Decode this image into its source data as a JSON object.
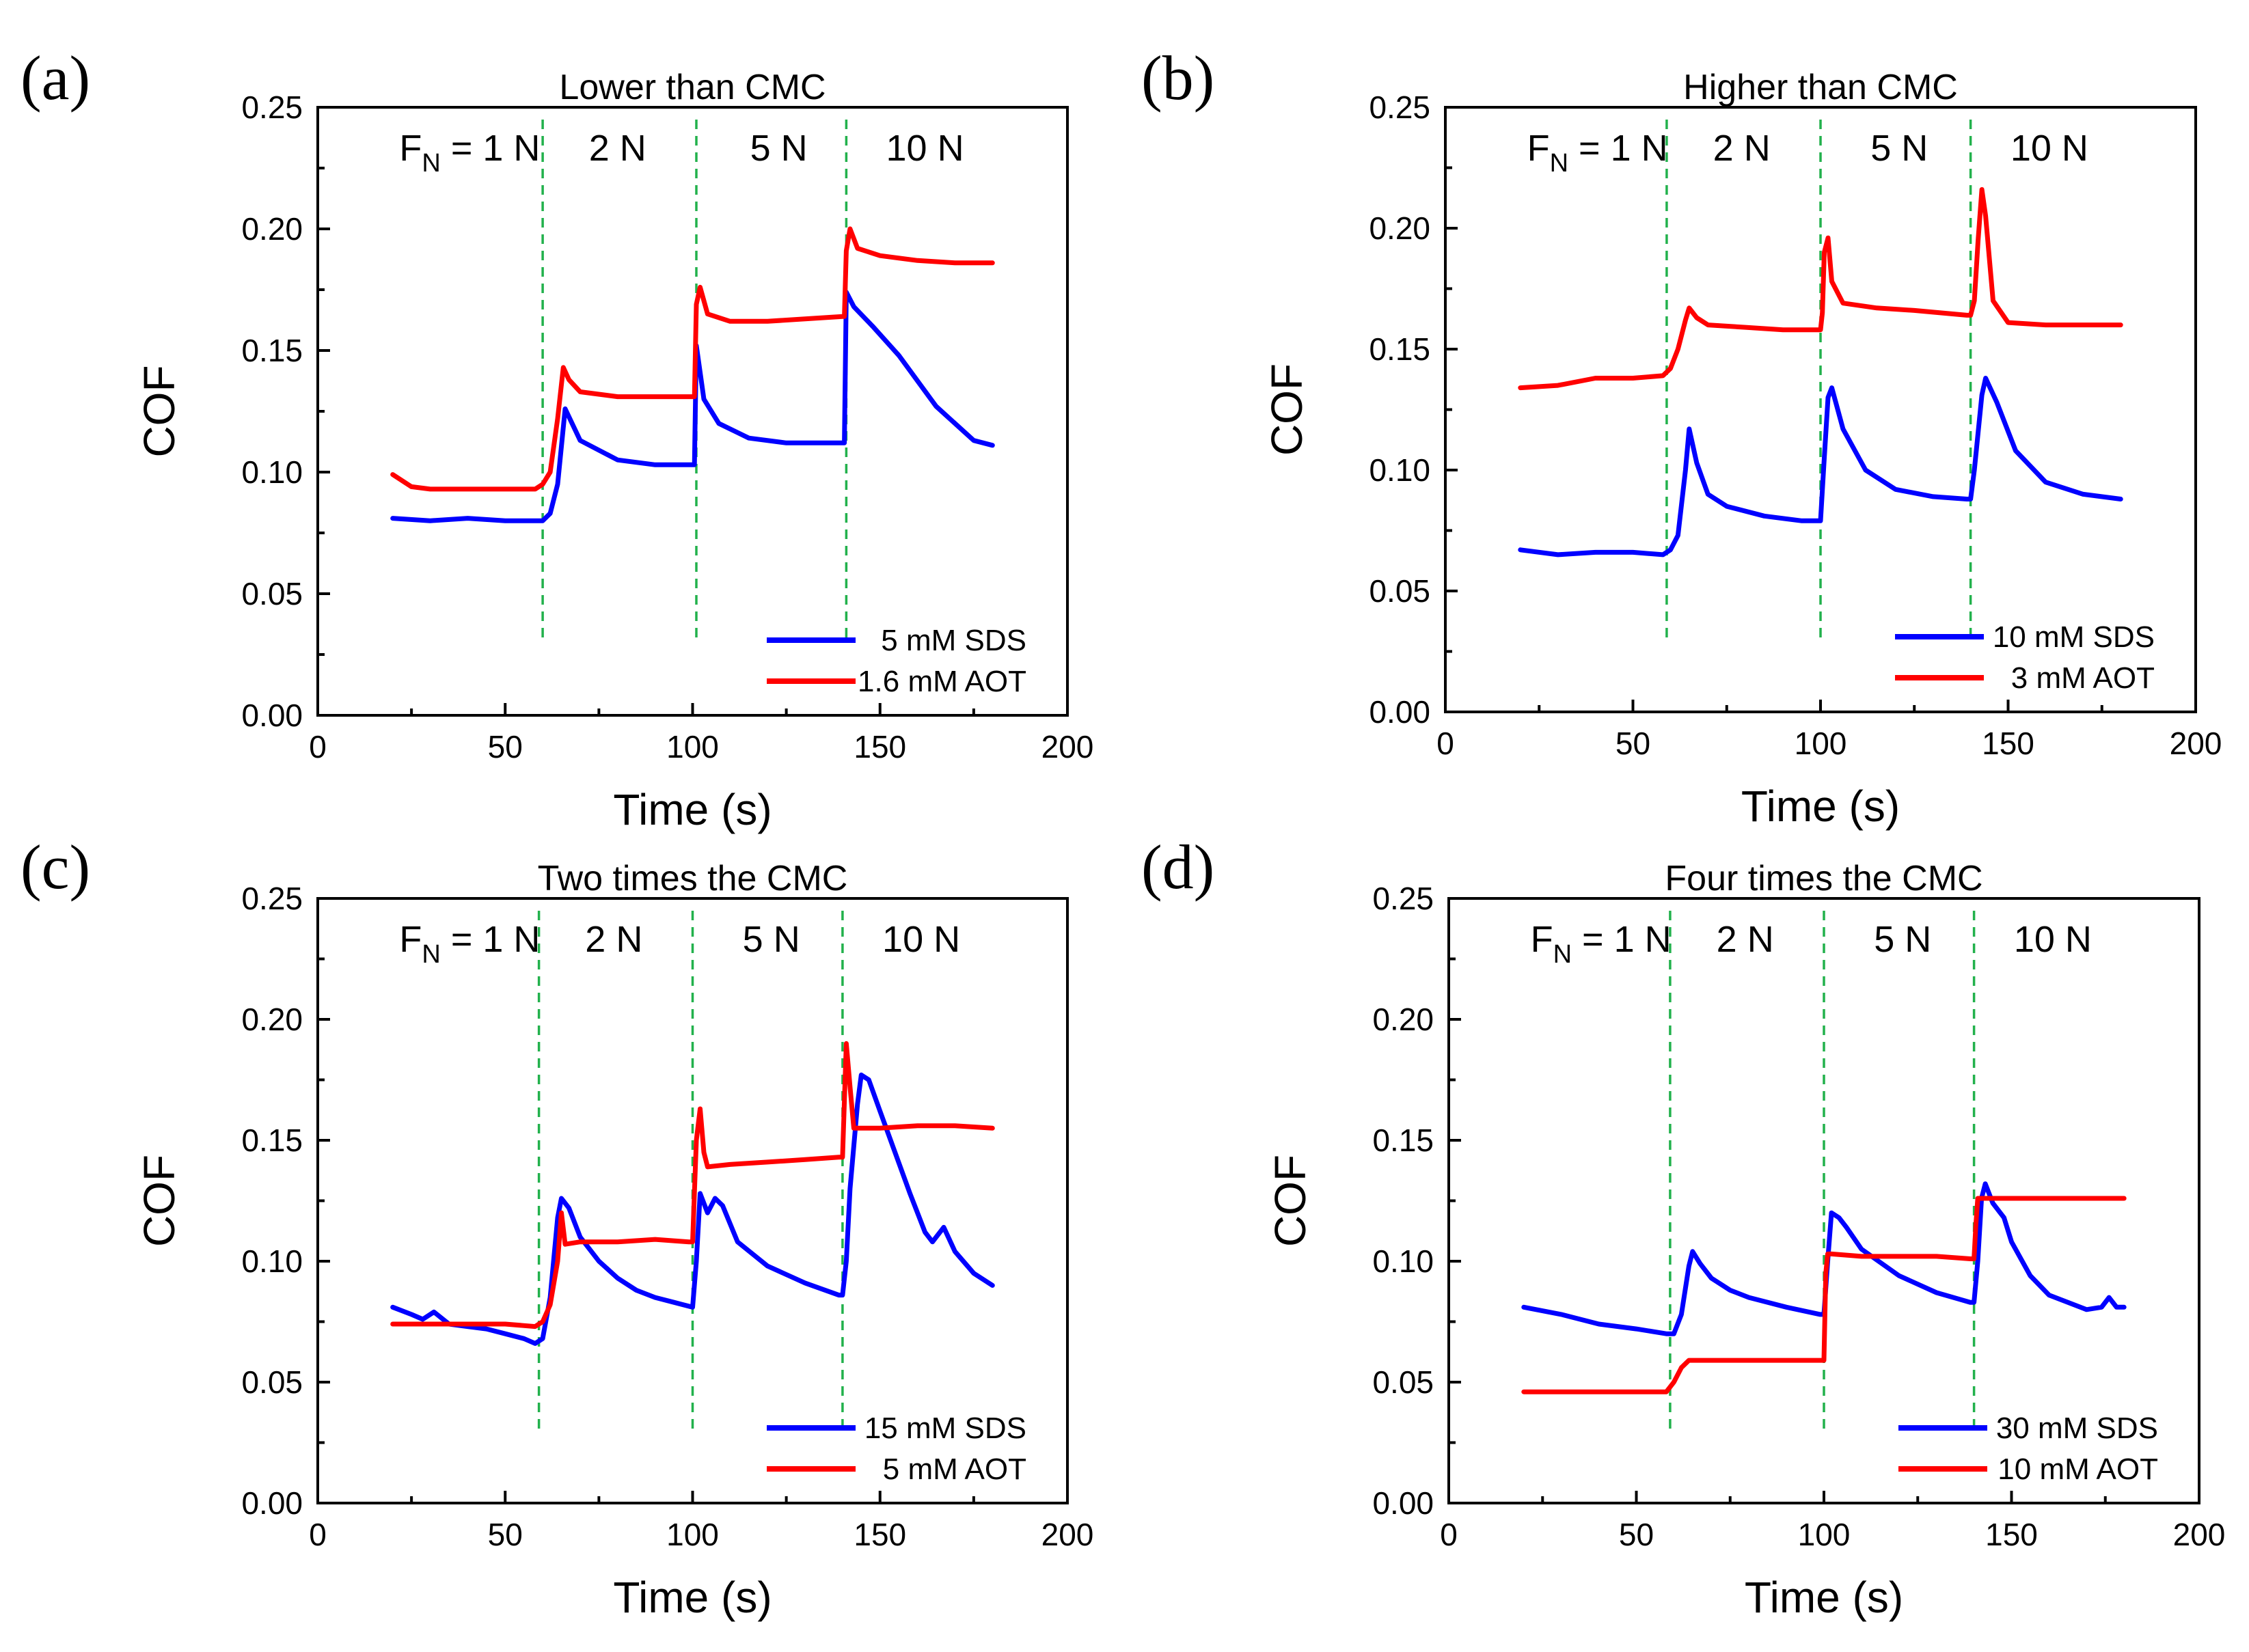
{
  "chart_data": [
    {
      "type": "line",
      "panel_label": "(a)",
      "title": "Lower than CMC",
      "xlabel": "Time (s)",
      "ylabel": "COF",
      "xlim": [
        0,
        200
      ],
      "ylim": [
        0,
        0.25
      ],
      "xticks": [
        "0",
        "50",
        "100",
        "150",
        "200"
      ],
      "yticks": [
        "0.00",
        "0.05",
        "0.10",
        "0.15",
        "0.20",
        "0.25"
      ],
      "vlines": [
        60,
        101,
        141
      ],
      "load_labels": [
        "F",
        "N",
        " = 1 N",
        "2 N",
        "5 N",
        "10 N"
      ],
      "load_positions": [
        40,
        80,
        123,
        162
      ],
      "legend_position": "lower-right",
      "series": [
        {
          "name": "5 mM SDS",
          "color": "#0000ff",
          "x": [
            20,
            30,
            40,
            50,
            58,
            60,
            62,
            64,
            66,
            70,
            80,
            90,
            100,
            100.5,
            101,
            103,
            107,
            115,
            125,
            140,
            140.5,
            141,
            143,
            148,
            155,
            165,
            175,
            180
          ],
          "y": [
            0.081,
            0.08,
            0.081,
            0.08,
            0.08,
            0.08,
            0.083,
            0.095,
            0.126,
            0.113,
            0.105,
            0.103,
            0.103,
            0.103,
            0.152,
            0.13,
            0.12,
            0.114,
            0.112,
            0.112,
            0.112,
            0.174,
            0.168,
            0.16,
            0.148,
            0.127,
            0.113,
            0.111
          ]
        },
        {
          "name": "1.6 mM AOT",
          "color": "#ff0000",
          "x": [
            20,
            25,
            30,
            40,
            50,
            58,
            60,
            62,
            64,
            65.5,
            67,
            70,
            80,
            90,
            100,
            100.5,
            101,
            102,
            104,
            110,
            120,
            130,
            140,
            140.5,
            141,
            142,
            144,
            150,
            160,
            170,
            180
          ],
          "y": [
            0.099,
            0.094,
            0.093,
            0.093,
            0.093,
            0.093,
            0.095,
            0.1,
            0.122,
            0.143,
            0.138,
            0.133,
            0.131,
            0.131,
            0.131,
            0.131,
            0.169,
            0.176,
            0.165,
            0.162,
            0.162,
            0.163,
            0.164,
            0.164,
            0.191,
            0.2,
            0.192,
            0.189,
            0.187,
            0.186,
            0.186
          ]
        }
      ]
    },
    {
      "type": "line",
      "panel_label": "(b)",
      "title": "Higher than CMC",
      "xlabel": "Time (s)",
      "ylabel": "COF",
      "xlim": [
        0,
        200
      ],
      "ylim": [
        0,
        0.25
      ],
      "xticks": [
        "0",
        "50",
        "100",
        "150",
        "200"
      ],
      "yticks": [
        "0.00",
        "0.05",
        "0.10",
        "0.15",
        "0.20",
        "0.25"
      ],
      "vlines": [
        59,
        100,
        140
      ],
      "load_labels": [
        "F",
        "N",
        " = 1 N",
        "2 N",
        "5 N",
        "10 N"
      ],
      "load_positions": [
        40,
        79,
        121,
        161
      ],
      "legend_position": "lower-right",
      "series": [
        {
          "name": "10 mM SDS",
          "color": "#0000ff",
          "x": [
            20,
            30,
            40,
            50,
            58,
            60,
            62,
            64,
            65,
            67,
            70,
            75,
            85,
            95,
            99,
            100,
            101,
            102,
            103,
            106,
            112,
            120,
            130,
            139,
            140,
            141,
            143,
            144,
            147,
            152,
            160,
            170,
            180
          ],
          "y": [
            0.067,
            0.065,
            0.066,
            0.066,
            0.065,
            0.067,
            0.073,
            0.1,
            0.117,
            0.103,
            0.09,
            0.085,
            0.081,
            0.079,
            0.079,
            0.079,
            0.105,
            0.13,
            0.134,
            0.117,
            0.1,
            0.092,
            0.089,
            0.088,
            0.088,
            0.1,
            0.131,
            0.138,
            0.128,
            0.108,
            0.095,
            0.09,
            0.088
          ]
        },
        {
          "name": "3 mM AOT",
          "color": "#ff0000",
          "x": [
            20,
            30,
            40,
            50,
            58,
            60,
            62,
            64,
            65,
            67,
            70,
            80,
            90,
            99,
            100,
            100.5,
            101,
            102,
            103,
            106,
            115,
            125,
            139,
            140,
            141,
            142,
            143,
            144,
            146,
            150,
            160,
            170,
            180
          ],
          "y": [
            0.134,
            0.135,
            0.138,
            0.138,
            0.139,
            0.142,
            0.15,
            0.162,
            0.167,
            0.163,
            0.16,
            0.159,
            0.158,
            0.158,
            0.158,
            0.165,
            0.19,
            0.196,
            0.178,
            0.169,
            0.167,
            0.166,
            0.164,
            0.164,
            0.17,
            0.195,
            0.216,
            0.205,
            0.17,
            0.161,
            0.16,
            0.16,
            0.16
          ]
        }
      ]
    },
    {
      "type": "line",
      "panel_label": "(c)",
      "title": "Two times the CMC",
      "xlabel": "Time (s)",
      "ylabel": "COF",
      "xlim": [
        0,
        200
      ],
      "ylim": [
        0,
        0.25
      ],
      "xticks": [
        "0",
        "50",
        "100",
        "150",
        "200"
      ],
      "yticks": [
        "0.00",
        "0.05",
        "0.10",
        "0.15",
        "0.20",
        "0.25"
      ],
      "vlines": [
        59,
        100,
        140
      ],
      "load_labels": [
        "F",
        "N",
        " = 1 N",
        "2 N",
        "5 N",
        "10 N"
      ],
      "load_positions": [
        40,
        79,
        121,
        161
      ],
      "legend_position": "lower-right",
      "series": [
        {
          "name": "15 mM SDS",
          "color": "#0000ff",
          "x": [
            20,
            25,
            28,
            31,
            35,
            40,
            45,
            50,
            55,
            58,
            60,
            62,
            64,
            65,
            67,
            70,
            75,
            80,
            85,
            90,
            95,
            100,
            101,
            102,
            104,
            106,
            108,
            112,
            120,
            130,
            139,
            140,
            141,
            142,
            144,
            145,
            147,
            150,
            154,
            158,
            162,
            164,
            166,
            167,
            170,
            175,
            180
          ],
          "y": [
            0.081,
            0.078,
            0.076,
            0.079,
            0.074,
            0.073,
            0.072,
            0.07,
            0.068,
            0.066,
            0.068,
            0.085,
            0.118,
            0.126,
            0.122,
            0.11,
            0.1,
            0.093,
            0.088,
            0.085,
            0.083,
            0.081,
            0.1,
            0.128,
            0.12,
            0.126,
            0.123,
            0.108,
            0.098,
            0.091,
            0.086,
            0.086,
            0.1,
            0.13,
            0.165,
            0.177,
            0.175,
            0.162,
            0.145,
            0.128,
            0.112,
            0.108,
            0.112,
            0.114,
            0.104,
            0.095,
            0.09
          ]
        },
        {
          "name": "5 mM AOT",
          "color": "#ff0000",
          "x": [
            20,
            30,
            40,
            50,
            58,
            60,
            62,
            64,
            65,
            66,
            70,
            80,
            90,
            99,
            100,
            101,
            102,
            103,
            104,
            110,
            120,
            130,
            139,
            140,
            141,
            142,
            143,
            145,
            150,
            160,
            170,
            180
          ],
          "y": [
            0.074,
            0.074,
            0.074,
            0.074,
            0.073,
            0.075,
            0.082,
            0.1,
            0.12,
            0.107,
            0.108,
            0.108,
            0.109,
            0.108,
            0.108,
            0.15,
            0.163,
            0.145,
            0.139,
            0.14,
            0.141,
            0.142,
            0.143,
            0.143,
            0.19,
            0.172,
            0.155,
            0.155,
            0.155,
            0.156,
            0.156,
            0.155
          ]
        }
      ]
    },
    {
      "type": "line",
      "panel_label": "(d)",
      "title": "Four times the CMC",
      "xlabel": "Time (s)",
      "ylabel": "COF",
      "xlim": [
        0,
        200
      ],
      "ylim": [
        0,
        0.25
      ],
      "xticks": [
        "0",
        "50",
        "100",
        "150",
        "200"
      ],
      "yticks": [
        "0.00",
        "0.05",
        "0.10",
        "0.15",
        "0.20",
        "0.25"
      ],
      "vlines": [
        59,
        100,
        140
      ],
      "load_labels": [
        "F",
        "N",
        " = 1 N",
        "2 N",
        "5 N",
        "10 N"
      ],
      "load_positions": [
        40,
        79,
        121,
        161
      ],
      "legend_position": "lower-right",
      "series": [
        {
          "name": "30 mM SDS",
          "color": "#0000ff",
          "x": [
            20,
            30,
            40,
            50,
            58,
            60,
            62,
            64,
            65,
            67,
            70,
            75,
            80,
            90,
            99,
            100,
            101,
            102,
            104,
            106,
            110,
            120,
            130,
            139,
            140,
            141,
            142,
            143,
            145,
            148,
            150,
            155,
            160,
            170,
            174,
            176,
            178,
            180
          ],
          "y": [
            0.081,
            0.078,
            0.074,
            0.072,
            0.07,
            0.07,
            0.078,
            0.098,
            0.104,
            0.099,
            0.093,
            0.088,
            0.085,
            0.081,
            0.078,
            0.078,
            0.1,
            0.12,
            0.118,
            0.114,
            0.105,
            0.094,
            0.087,
            0.083,
            0.083,
            0.1,
            0.126,
            0.132,
            0.124,
            0.118,
            0.108,
            0.094,
            0.086,
            0.08,
            0.081,
            0.085,
            0.081,
            0.081
          ]
        },
        {
          "name": "10 mM AOT",
          "color": "#ff0000",
          "x": [
            20,
            30,
            40,
            50,
            58,
            60,
            62,
            64,
            65,
            70,
            80,
            90,
            99,
            100,
            100.5,
            101,
            102,
            110,
            120,
            130,
            139,
            140,
            140.5,
            141,
            143,
            150,
            160,
            170,
            180
          ],
          "y": [
            0.046,
            0.046,
            0.046,
            0.046,
            0.046,
            0.05,
            0.056,
            0.059,
            0.059,
            0.059,
            0.059,
            0.059,
            0.059,
            0.059,
            0.095,
            0.103,
            0.103,
            0.102,
            0.102,
            0.102,
            0.101,
            0.101,
            0.115,
            0.126,
            0.126,
            0.126,
            0.126,
            0.126,
            0.126
          ]
        }
      ]
    }
  ]
}
